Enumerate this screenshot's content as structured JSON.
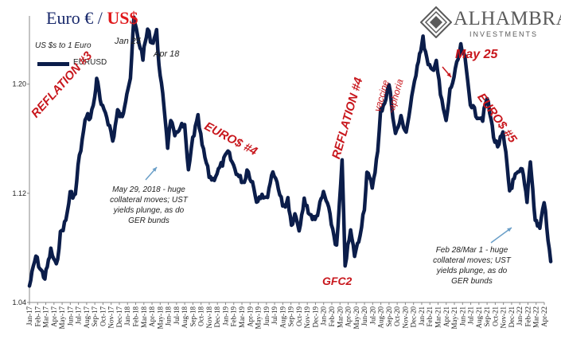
{
  "header": {
    "title_part1": "Euro € / ",
    "title_part2": "US$",
    "brand_name": "ALHAMBRA",
    "brand_sub": "INVESTMENTS"
  },
  "colors": {
    "series": "#0b1d4a",
    "title_blue": "#1a2a6c",
    "annotation_red": "#c8171d",
    "arrow_blue": "#6a9fc8"
  },
  "chart_data": {
    "type": "line",
    "unit_label": "US $s to 1 Euro",
    "ylim": [
      1.04,
      1.25
    ],
    "yticks": [
      "1.04",
      "1.12",
      "1.20"
    ],
    "xlabels": [
      "Jan-17",
      "Feb-17",
      "Mar-17",
      "Apr-17",
      "May-17",
      "Jun-17",
      "Jul-17",
      "Aug-17",
      "Sep-17",
      "Oct-17",
      "Nov-17",
      "Dec-17",
      "Jan-18",
      "Feb-18",
      "Mar-18",
      "Apr-18",
      "May-18",
      "Jun-18",
      "Jul-18",
      "Aug-18",
      "Sep-18",
      "Oct-18",
      "Nov-18",
      "Dec-18",
      "Jan-19",
      "Feb-19",
      "Mar-19",
      "Apr-19",
      "May-19",
      "Jun-19",
      "Jul-19",
      "Aug-19",
      "Sep-19",
      "Oct-19",
      "Nov-19",
      "Dec-19",
      "Jan-20",
      "Feb-20",
      "Mar-20",
      "Apr-20",
      "May-20",
      "Jun-20",
      "Jul-20",
      "Aug-20",
      "Sep-20",
      "Oct-20",
      "Nov-20",
      "Dec-20",
      "Jan-21",
      "Feb-21",
      "Mar-21",
      "Apr-21",
      "May-21",
      "Jun-21",
      "Jul-21",
      "Aug-21",
      "Sep-21",
      "Oct-21",
      "Nov-21",
      "Dec-21",
      "Jan-22",
      "Feb-22",
      "Mar-22",
      "Apr-22"
    ],
    "series": [
      {
        "name": "EURUSD",
        "points": [
          [
            "2017-01-01",
            1.052
          ],
          [
            "2017-01-25",
            1.074
          ],
          [
            "2017-02-10",
            1.065
          ],
          [
            "2017-02-28",
            1.058
          ],
          [
            "2017-03-20",
            1.078
          ],
          [
            "2017-04-10",
            1.066
          ],
          [
            "2017-04-25",
            1.09
          ],
          [
            "2017-05-15",
            1.1
          ],
          [
            "2017-05-31",
            1.12
          ],
          [
            "2017-06-20",
            1.118
          ],
          [
            "2017-06-30",
            1.14
          ],
          [
            "2017-07-20",
            1.165
          ],
          [
            "2017-07-31",
            1.178
          ],
          [
            "2017-08-15",
            1.175
          ],
          [
            "2017-08-31",
            1.19
          ],
          [
            "2017-09-08",
            1.205
          ],
          [
            "2017-09-25",
            1.183
          ],
          [
            "2017-10-10",
            1.18
          ],
          [
            "2017-10-31",
            1.165
          ],
          [
            "2017-11-07",
            1.158
          ],
          [
            "2017-11-25",
            1.18
          ],
          [
            "2017-12-12",
            1.175
          ],
          [
            "2017-12-29",
            1.195
          ],
          [
            "2018-01-12",
            1.205
          ],
          [
            "2018-01-25",
            1.248
          ],
          [
            "2018-02-08",
            1.235
          ],
          [
            "2018-02-28",
            1.22
          ],
          [
            "2018-03-15",
            1.24
          ],
          [
            "2018-03-31",
            1.23
          ],
          [
            "2018-04-18",
            1.238
          ],
          [
            "2018-05-01",
            1.205
          ],
          [
            "2018-05-15",
            1.185
          ],
          [
            "2018-05-29",
            1.155
          ],
          [
            "2018-06-10",
            1.175
          ],
          [
            "2018-06-25",
            1.16
          ],
          [
            "2018-07-15",
            1.17
          ],
          [
            "2018-08-01",
            1.168
          ],
          [
            "2018-08-15",
            1.135
          ],
          [
            "2018-08-31",
            1.16
          ],
          [
            "2018-09-20",
            1.175
          ],
          [
            "2018-10-05",
            1.155
          ],
          [
            "2018-10-31",
            1.133
          ],
          [
            "2018-11-15",
            1.13
          ],
          [
            "2018-11-30",
            1.135
          ],
          [
            "2018-12-20",
            1.142
          ],
          [
            "2019-01-10",
            1.15
          ],
          [
            "2019-01-31",
            1.14
          ],
          [
            "2019-02-20",
            1.132
          ],
          [
            "2019-03-10",
            1.128
          ],
          [
            "2019-03-20",
            1.138
          ],
          [
            "2019-04-10",
            1.128
          ],
          [
            "2019-04-25",
            1.115
          ],
          [
            "2019-05-15",
            1.12
          ],
          [
            "2019-05-31",
            1.115
          ],
          [
            "2019-06-25",
            1.137
          ],
          [
            "2019-07-15",
            1.125
          ],
          [
            "2019-07-31",
            1.11
          ],
          [
            "2019-08-20",
            1.115
          ],
          [
            "2019-09-03",
            1.095
          ],
          [
            "2019-09-20",
            1.105
          ],
          [
            "2019-10-01",
            1.09
          ],
          [
            "2019-10-20",
            1.115
          ],
          [
            "2019-11-10",
            1.105
          ],
          [
            "2019-11-30",
            1.1
          ],
          [
            "2019-12-31",
            1.12
          ],
          [
            "2020-01-15",
            1.112
          ],
          [
            "2020-02-19",
            1.08
          ],
          [
            "2020-03-09",
            1.142
          ],
          [
            "2020-03-20",
            1.068
          ],
          [
            "2020-04-10",
            1.092
          ],
          [
            "2020-04-25",
            1.075
          ],
          [
            "2020-05-10",
            1.085
          ],
          [
            "2020-05-31",
            1.11
          ],
          [
            "2020-06-10",
            1.135
          ],
          [
            "2020-06-30",
            1.125
          ],
          [
            "2020-07-20",
            1.15
          ],
          [
            "2020-07-31",
            1.18
          ],
          [
            "2020-08-20",
            1.19
          ],
          [
            "2020-09-01",
            1.2
          ],
          [
            "2020-09-25",
            1.163
          ],
          [
            "2020-10-15",
            1.175
          ],
          [
            "2020-11-04",
            1.165
          ],
          [
            "2020-11-30",
            1.195
          ],
          [
            "2020-12-15",
            1.215
          ],
          [
            "2021-01-06",
            1.233
          ],
          [
            "2021-01-25",
            1.213
          ],
          [
            "2021-02-10",
            1.21
          ],
          [
            "2021-02-25",
            1.218
          ],
          [
            "2021-03-10",
            1.192
          ],
          [
            "2021-03-31",
            1.172
          ],
          [
            "2021-04-15",
            1.195
          ],
          [
            "2021-04-30",
            1.205
          ],
          [
            "2021-05-25",
            1.227
          ],
          [
            "2021-06-10",
            1.218
          ],
          [
            "2021-06-30",
            1.187
          ],
          [
            "2021-07-20",
            1.178
          ],
          [
            "2021-08-15",
            1.175
          ],
          [
            "2021-09-01",
            1.19
          ],
          [
            "2021-09-30",
            1.158
          ],
          [
            "2021-10-10",
            1.155
          ],
          [
            "2021-10-30",
            1.163
          ],
          [
            "2021-11-10",
            1.148
          ],
          [
            "2021-11-24",
            1.122
          ],
          [
            "2021-12-15",
            1.132
          ],
          [
            "2022-01-10",
            1.137
          ],
          [
            "2022-01-28",
            1.115
          ],
          [
            "2022-02-10",
            1.145
          ],
          [
            "2022-02-28",
            1.1
          ],
          [
            "2022-03-15",
            1.095
          ],
          [
            "2022-03-31",
            1.115
          ],
          [
            "2022-04-15",
            1.085
          ],
          [
            "2022-04-25",
            1.07
          ]
        ]
      }
    ],
    "annotations": {
      "jan25": "Jan 25",
      "apr18": "Apr 18",
      "reflation3": "REFLATION #3",
      "euro4": "EURO$ #4",
      "reflation4": "REFLATION #4",
      "vaccine": "vaccine",
      "aphoria": "-aphoria",
      "may25": "May 25",
      "euro5": "EURO$ #5",
      "gfc2": "GFC2",
      "note_2018_l1": "May 29, 2018 - huge",
      "note_2018_l2": "collateral moves; UST",
      "note_2018_l3": "yields plunge, as do",
      "note_2018_l4": "GER bunds",
      "note_2022_l1": "Feb 28/Mar 1 - huge",
      "note_2022_l2": "collateral moves; UST",
      "note_2022_l3": "yields plunge, as do",
      "note_2022_l4": "GER bunds"
    }
  }
}
